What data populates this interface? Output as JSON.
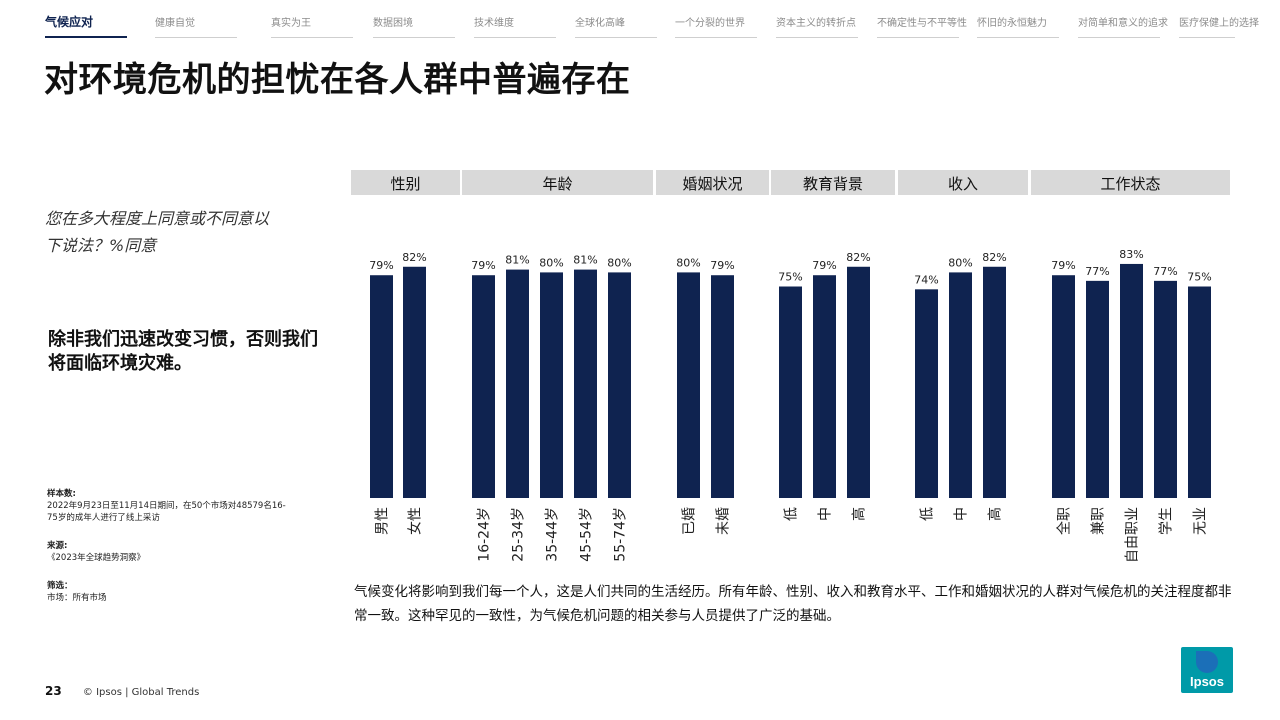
{
  "nav": {
    "items": [
      "气候应对",
      "健康自觉",
      "真实为王",
      "数据困境",
      "技术维度",
      "全球化高峰",
      "一个分裂的世界",
      "资本主义的转折点",
      "不确定性与不平等性",
      "怀旧的永恒魅力",
      "对简单和意义的追求",
      "医疗保健上的选择"
    ],
    "active_index": 0
  },
  "title": "对环境危机的担忧在各人群中普遍存在",
  "question": "您在多大程度上同意或不同意以下说法？%同意",
  "statement": "除非我们迅速改变习惯，否则我们将面临环境灾难。",
  "notes": {
    "sample_head": "样本数:",
    "sample_text": "2022年9月23日至11月14日期间，在50个市场对48579名16-75岁的成年人进行了线上采访",
    "source_head": "来源:",
    "source_text": "《2023年全球趋势洞察》",
    "filter_head": "筛选：",
    "filter_text": "市场：所有市场"
  },
  "summary": "气候变化将影响到我们每一个人，这是人们共同的生活经历。所有年龄、性别、收入和教育水平、工作和婚姻状况的人群对气候危机的关注程度都非常一致。这种罕见的一致性，为气候危机问题的相关参与人员提供了广泛的基础。",
  "footer": {
    "page": "23",
    "text": "© Ipsos | Global Trends"
  },
  "logo": {
    "text": "Ipsos"
  },
  "colors": {
    "bar": "#0f2350",
    "group_header": "#d9d9d9",
    "logo": "#009aa8"
  },
  "chart_data": {
    "type": "bar",
    "unit": "%",
    "ylim": [
      0,
      100
    ],
    "groups": [
      {
        "name": "性别",
        "categories": [
          "男性",
          "女性"
        ],
        "values": [
          79,
          82
        ]
      },
      {
        "name": "年龄",
        "categories": [
          "16-24岁",
          "25-34岁",
          "35-44岁",
          "45-54岁",
          "55-74岁"
        ],
        "values": [
          79,
          81,
          80,
          81,
          80
        ]
      },
      {
        "name": "婚姻状况",
        "categories": [
          "已婚",
          "未婚"
        ],
        "values": [
          80,
          79
        ]
      },
      {
        "name": "教育背景",
        "categories": [
          "低",
          "中",
          "高"
        ],
        "values": [
          75,
          79,
          82
        ]
      },
      {
        "name": "收入",
        "categories": [
          "低",
          "中",
          "高"
        ],
        "values": [
          74,
          80,
          82
        ]
      },
      {
        "name": "工作状态",
        "categories": [
          "全职",
          "兼职",
          "自由职业",
          "学生",
          "无业"
        ],
        "values": [
          79,
          77,
          83,
          77,
          75
        ]
      }
    ]
  }
}
